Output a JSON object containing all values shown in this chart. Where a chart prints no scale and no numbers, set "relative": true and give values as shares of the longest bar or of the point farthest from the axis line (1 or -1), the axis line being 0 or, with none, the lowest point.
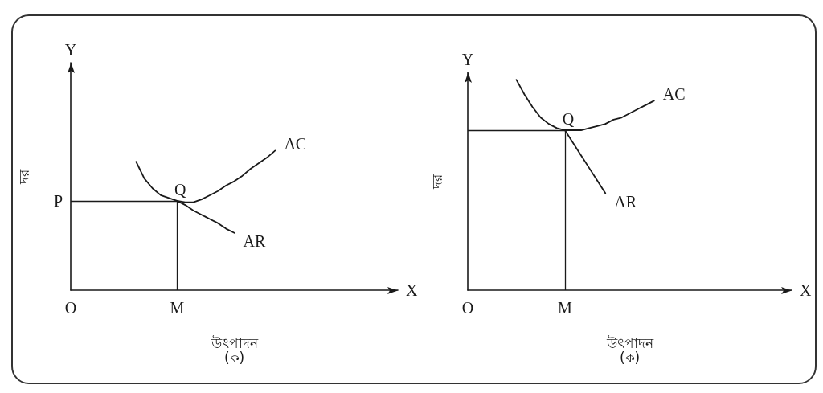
{
  "chart_data": [
    {
      "type": "line",
      "relative": true,
      "xlabel": "উৎপাদন",
      "ylabel": "দর",
      "marker": "none",
      "line_style": "solid",
      "categories": [
        "O",
        null,
        null,
        null,
        null,
        null,
        null,
        null,
        null,
        null,
        null,
        null,
        null,
        "M",
        null,
        null,
        null,
        null,
        null,
        null,
        null,
        null,
        null,
        null,
        null,
        null,
        null,
        null,
        null,
        null,
        null,
        null,
        null,
        null,
        null,
        null,
        null,
        null,
        null,
        null,
        null
      ],
      "series": [
        {
          "name": "AC",
          "color": "#1a1a1a",
          "values": [
            null,
            null,
            null,
            null,
            null,
            null,
            null,
            null,
            0.92,
            0.8,
            0.73,
            0.68,
            0.66,
            0.64,
            0.63,
            0.63,
            0.65,
            0.68,
            0.71,
            0.75,
            0.78,
            0.82,
            0.87,
            0.91,
            0.95,
            1,
            null,
            null,
            null,
            null,
            null,
            null,
            null,
            null,
            null,
            null,
            null,
            null,
            null,
            null,
            null
          ]
        },
        {
          "name": "AR",
          "color": "#1a1a1a",
          "values": [
            null,
            null,
            null,
            null,
            null,
            null,
            null,
            null,
            null,
            null,
            null,
            null,
            null,
            0.64,
            0.61,
            0.57,
            0.54,
            0.51,
            0.48,
            0.44,
            0.41,
            null,
            null,
            null,
            null,
            null,
            null,
            null,
            null,
            null,
            null,
            null,
            null,
            null,
            null,
            null,
            null,
            null,
            null,
            null,
            null
          ]
        }
      ],
      "ref_lines": [
        {
          "axis": "y",
          "value": 0.64,
          "label": "P"
        },
        {
          "axis": "x",
          "value": "M"
        }
      ],
      "annotations": [
        {
          "text": "Q",
          "x": "M",
          "y": 0.64
        },
        "Y",
        "X",
        "(ক)"
      ]
    },
    {
      "type": "line",
      "relative": true,
      "xlabel": "উৎপাদন",
      "ylabel": "দর",
      "marker": "none",
      "line_style": "solid",
      "categories": [
        "O",
        null,
        null,
        null,
        null,
        null,
        null,
        null,
        null,
        null,
        null,
        null,
        "M",
        null,
        null,
        null,
        null,
        null,
        null,
        null,
        null,
        null,
        null,
        null,
        null,
        null,
        null,
        null,
        null,
        null,
        null,
        null,
        null,
        null,
        null,
        null,
        null,
        null,
        null,
        null,
        null
      ],
      "series": [
        {
          "name": "AC",
          "color": "#1a1a1a",
          "values": [
            null,
            null,
            null,
            null,
            null,
            null,
            1,
            0.93,
            0.87,
            0.82,
            0.79,
            0.77,
            0.76,
            0.76,
            0.76,
            0.77,
            0.78,
            0.79,
            0.81,
            0.82,
            0.84,
            0.86,
            0.88,
            0.9,
            null,
            null,
            null,
            null,
            null,
            null,
            null,
            null,
            null,
            null,
            null,
            null,
            null,
            null,
            null,
            null,
            null
          ]
        },
        {
          "name": "AR",
          "color": "#1a1a1a",
          "values": [
            null,
            null,
            null,
            null,
            null,
            null,
            null,
            null,
            null,
            null,
            null,
            null,
            0.76,
            0.7,
            0.64,
            0.58,
            0.52,
            0.46,
            null,
            null,
            null,
            null,
            null,
            null,
            null,
            null,
            null,
            null,
            null,
            null,
            null,
            null,
            null,
            null,
            null,
            null,
            null,
            null,
            null,
            null,
            null
          ]
        }
      ],
      "ref_lines": [
        {
          "axis": "y",
          "value": 0.76
        },
        {
          "axis": "x",
          "value": "M"
        }
      ],
      "annotations": [
        {
          "text": "Q",
          "x": "M",
          "y": 0.76
        },
        "Y",
        "X",
        "(ক)"
      ]
    }
  ]
}
